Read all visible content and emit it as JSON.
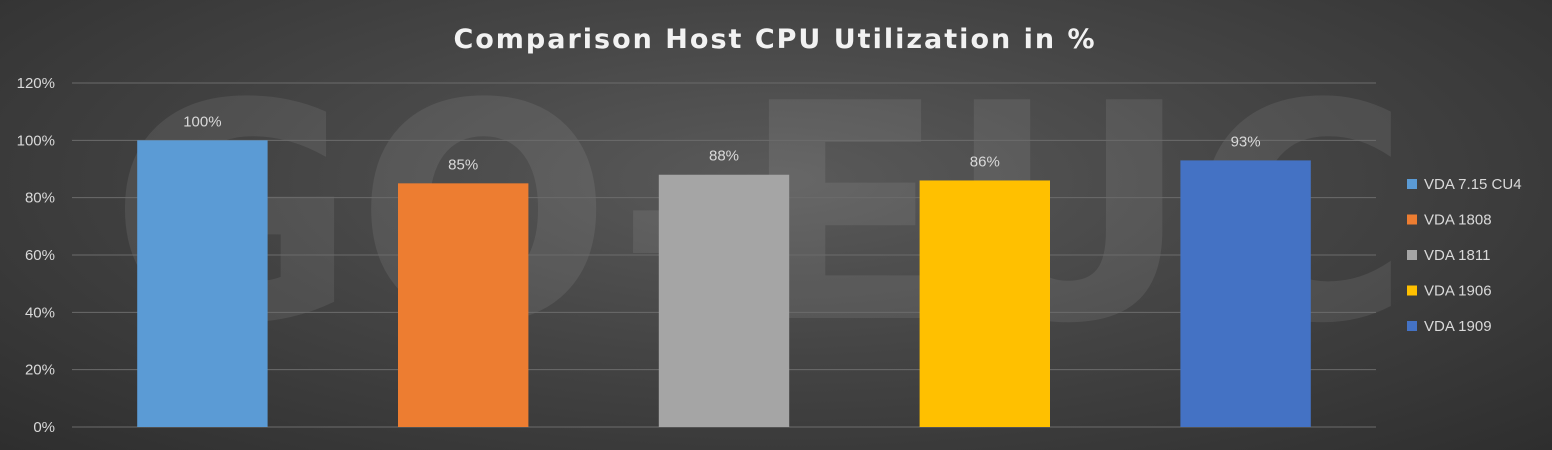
{
  "chart_data": {
    "type": "bar",
    "title": "Comparison Host CPU Utilization in %",
    "xlabel": "",
    "ylabel": "",
    "ylim": [
      0,
      120
    ],
    "yticks": [
      0,
      20,
      40,
      60,
      80,
      100,
      120
    ],
    "ytick_labels": [
      "0%",
      "20%",
      "40%",
      "60%",
      "80%",
      "100%",
      "120%"
    ],
    "grid": true,
    "legend_position": "right",
    "watermark": "GO-EUC",
    "series": [
      {
        "name": "VDA 7.15 CU4",
        "value": 100,
        "label": "100%",
        "color": "#5b9bd5"
      },
      {
        "name": "VDA 1808",
        "value": 85,
        "label": "85%",
        "color": "#ed7d31"
      },
      {
        "name": "VDA 1811",
        "value": 88,
        "label": "88%",
        "color": "#a5a5a5"
      },
      {
        "name": "VDA 1906",
        "value": 86,
        "label": "86%",
        "color": "#ffc000"
      },
      {
        "name": "VDA 1909",
        "value": 93,
        "label": "93%",
        "color": "#4472c4"
      }
    ]
  }
}
